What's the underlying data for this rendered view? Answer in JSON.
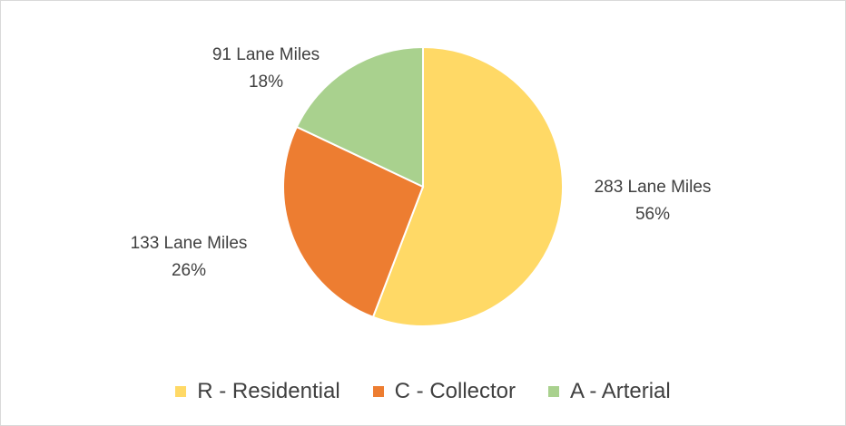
{
  "chart_data": {
    "type": "pie",
    "title": "",
    "unit": "Lane Miles",
    "slices": [
      {
        "name": "R - Residential",
        "value": 283,
        "percent": "56%",
        "label": "283 Lane Miles",
        "color": "#FFD966"
      },
      {
        "name": "C - Collector",
        "value": 133,
        "percent": "26%",
        "label": "133 Lane Miles",
        "color": "#ED7D31"
      },
      {
        "name": "A - Arterial",
        "value": 91,
        "percent": "18%",
        "label": "91 Lane Miles",
        "color": "#A9D18E"
      }
    ],
    "legend_position": "bottom"
  }
}
